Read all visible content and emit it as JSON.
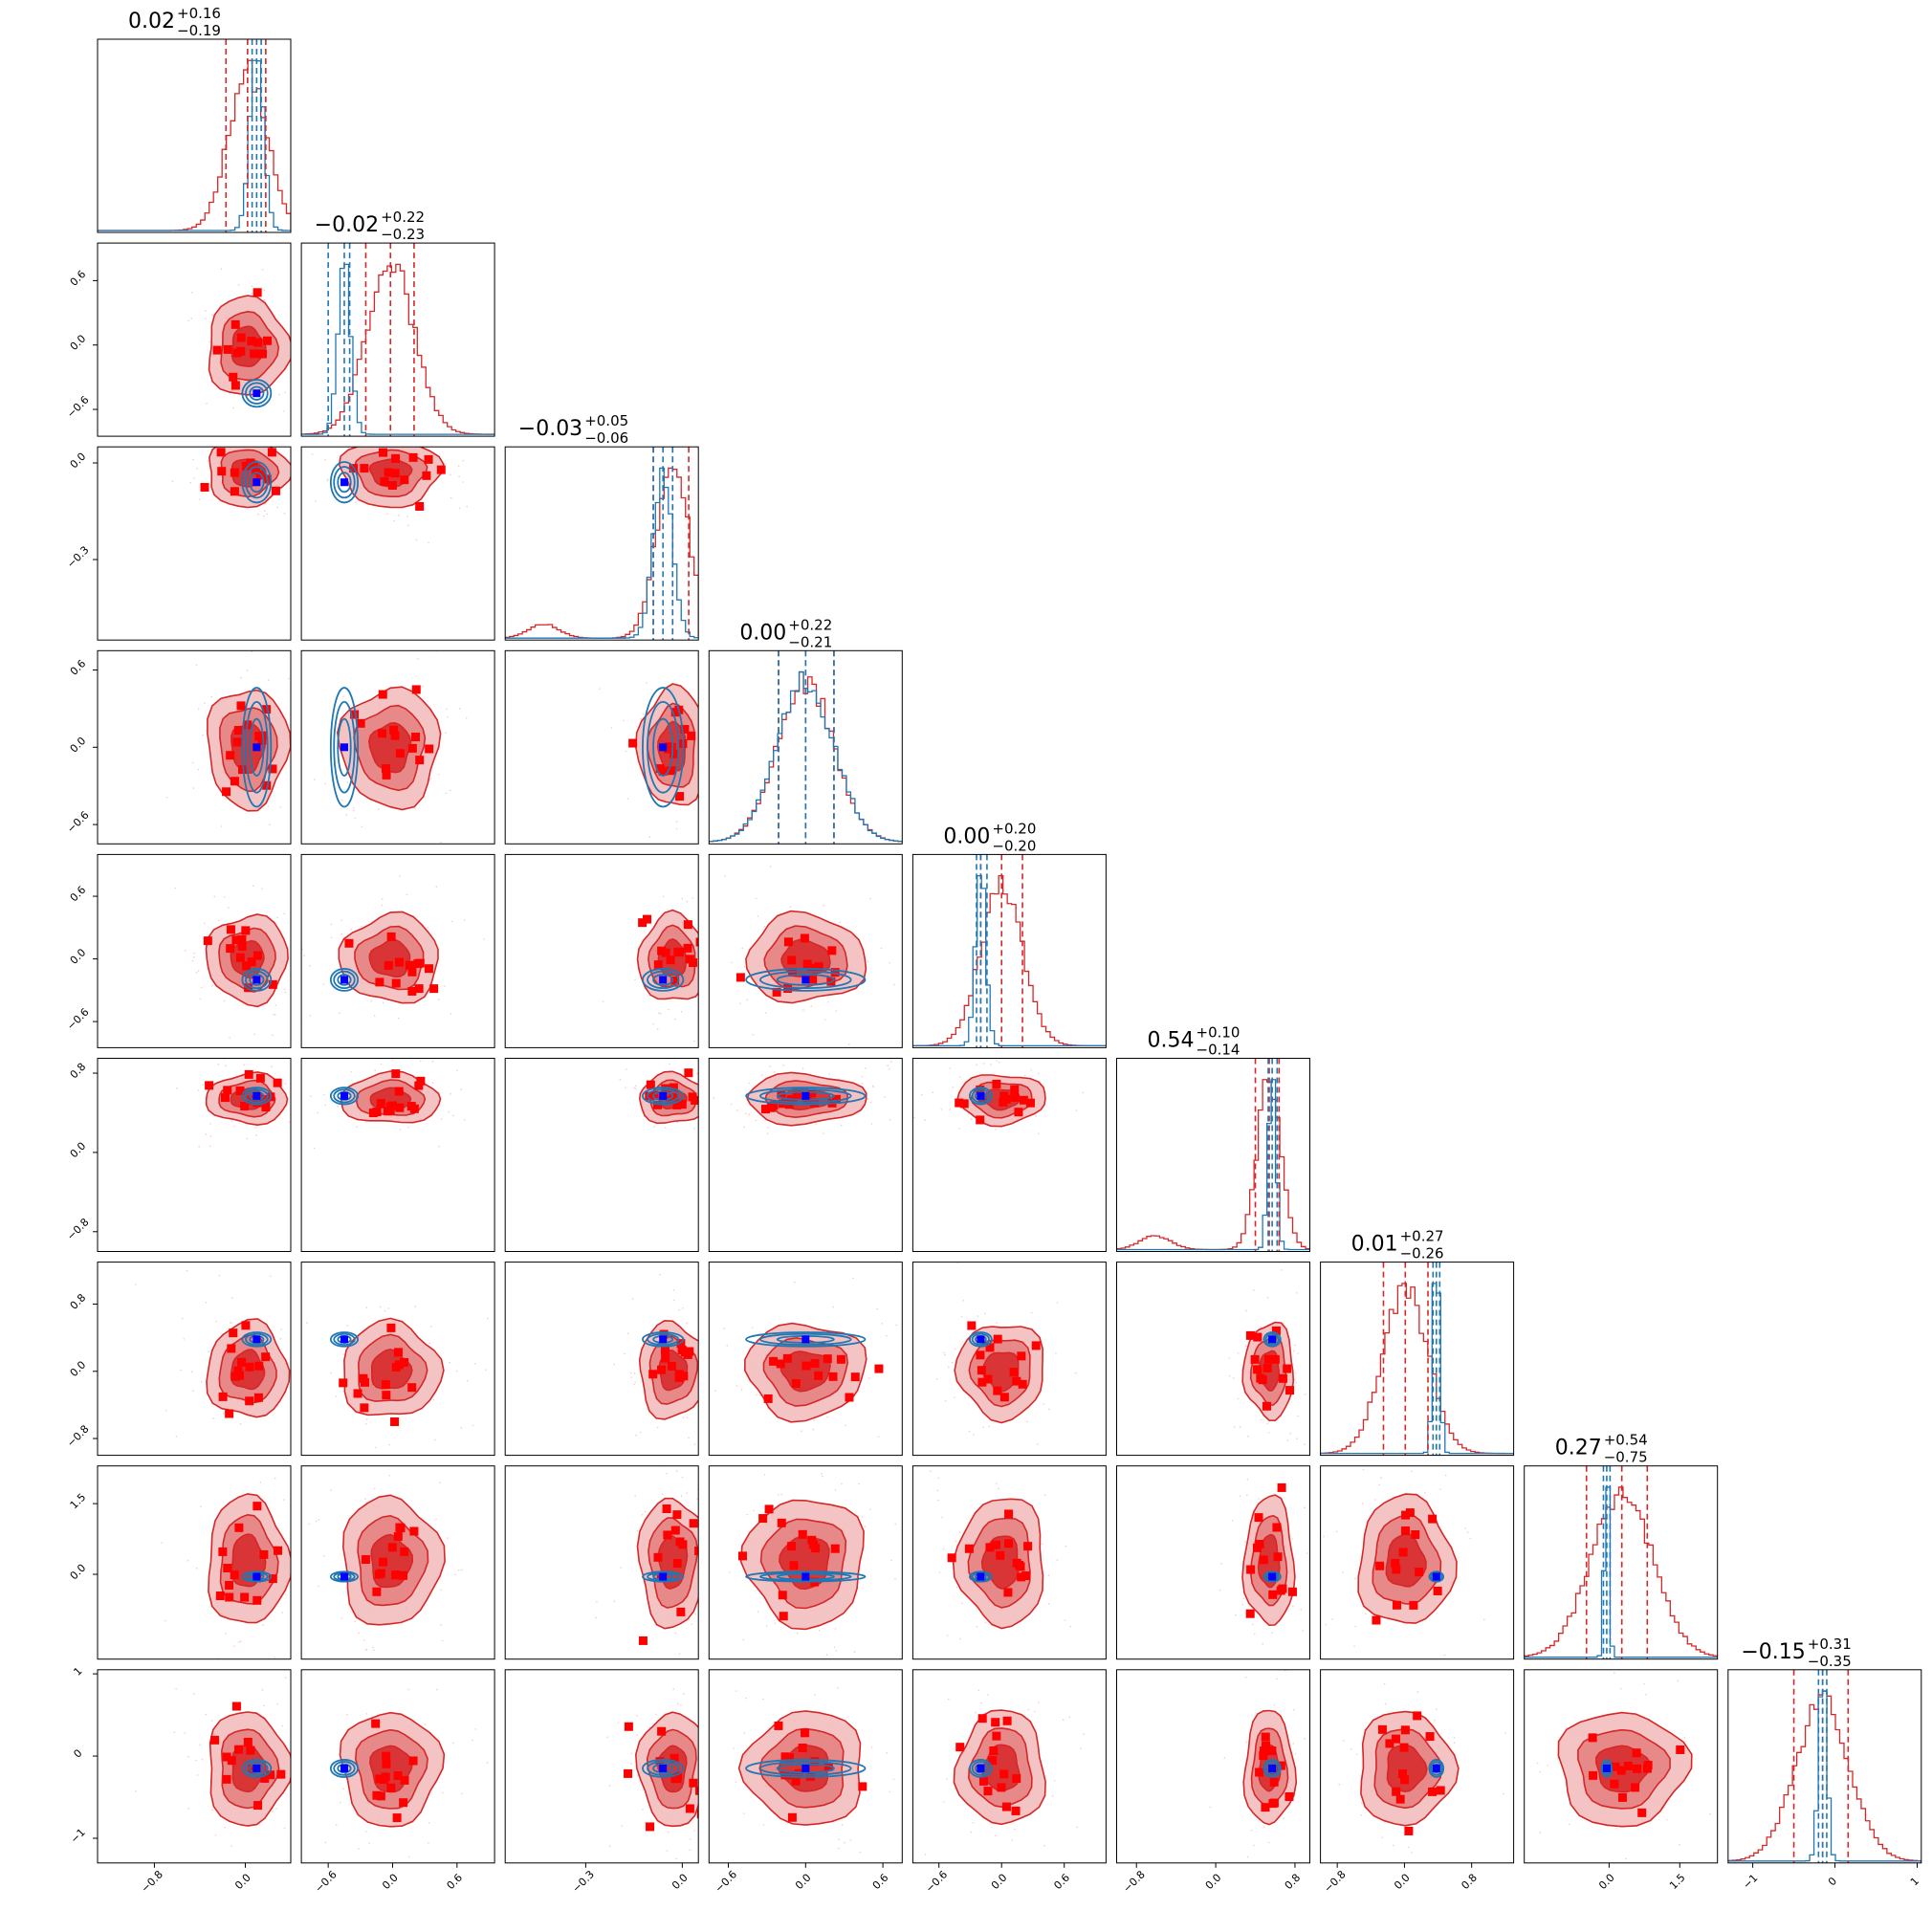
{
  "chart_data": {
    "type": "corner",
    "n_params": 9,
    "colors": {
      "red": "#d62728",
      "blue": "#1f77b4",
      "marker_red": "#ff0000",
      "marker_blue": "#0000ff"
    },
    "titles": [
      {
        "median": "0.02",
        "plus": "+0.16",
        "minus": "−0.19"
      },
      {
        "median": "−0.02",
        "plus": "+0.22",
        "minus": "−0.23"
      },
      {
        "median": "−0.03",
        "plus": "+0.05",
        "minus": "−0.06"
      },
      {
        "median": "0.00",
        "plus": "+0.22",
        "minus": "−0.21"
      },
      {
        "median": "0.00",
        "plus": "+0.20",
        "minus": "−0.20"
      },
      {
        "median": "0.54",
        "plus": "+0.10",
        "minus": "−0.14"
      },
      {
        "median": "0.01",
        "plus": "+0.27",
        "minus": "−0.26"
      },
      {
        "median": "0.27",
        "plus": "+0.54",
        "minus": "−0.75"
      },
      {
        "median": "−0.15",
        "plus": "+0.31",
        "minus": "−0.35"
      }
    ],
    "ranges": [
      [
        -1.3,
        0.4
      ],
      [
        -0.85,
        0.95
      ],
      [
        -0.55,
        0.05
      ],
      [
        -0.75,
        0.75
      ],
      [
        -0.85,
        1.0
      ],
      [
        -1.0,
        0.95
      ],
      [
        -1.0,
        1.3
      ],
      [
        -1.8,
        2.3
      ],
      [
        -1.3,
        1.05
      ]
    ],
    "ticks": [
      [
        -0.8,
        0.0
      ],
      [
        -0.6,
        0.0,
        0.6
      ],
      [
        -0.3,
        0.0
      ],
      [
        -0.6,
        0.0,
        0.6
      ],
      [
        -0.6,
        0.0,
        0.6
      ],
      [
        -0.8,
        0.0,
        0.8
      ],
      [
        -0.8,
        0.0,
        0.8
      ],
      [
        0.0,
        1.5
      ],
      [
        -1,
        0,
        1
      ]
    ],
    "tick_labels": [
      [
        "−0.8",
        "0.0"
      ],
      [
        "−0.6",
        "0.0",
        "0.6"
      ],
      [
        "−0.3",
        "0.0"
      ],
      [
        "−0.6",
        "0.0",
        "0.6"
      ],
      [
        "−0.6",
        "0.0",
        "0.6"
      ],
      [
        "−0.8",
        "0.0",
        "0.8"
      ],
      [
        "−0.8",
        "0.0",
        "0.8"
      ],
      [
        "0.0",
        "1.5"
      ],
      [
        "−1",
        "0",
        "1"
      ]
    ],
    "truth": [
      0.1,
      -0.45,
      -0.06,
      0.0,
      -0.2,
      0.57,
      0.38,
      -0.05,
      -0.15
    ],
    "red_median": [
      0.02,
      -0.02,
      -0.03,
      0.0,
      0.0,
      0.54,
      0.01,
      0.27,
      -0.15
    ],
    "red_sigma": [
      0.17,
      0.22,
      0.05,
      0.22,
      0.2,
      0.12,
      0.27,
      0.65,
      0.33
    ],
    "blue_median": [
      0.1,
      -0.45,
      -0.06,
      0.0,
      -0.2,
      0.57,
      0.38,
      -0.05,
      -0.15
    ],
    "blue_sigma": [
      0.06,
      0.06,
      0.03,
      0.22,
      0.05,
      0.04,
      0.04,
      0.05,
      0.05
    ],
    "blue_q16": [
      0.06,
      -0.6,
      -0.09,
      -0.21,
      -0.24,
      0.53,
      0.34,
      -0.12,
      -0.2
    ],
    "blue_q84": [
      0.14,
      -0.4,
      -0.03,
      0.22,
      -0.14,
      0.62,
      0.42,
      0.02,
      -0.1
    ],
    "red_q16": [
      -0.17,
      -0.25,
      -0.09,
      -0.21,
      -0.2,
      0.4,
      -0.25,
      -0.48,
      -0.5
    ],
    "red_q84": [
      0.18,
      0.2,
      0.02,
      0.22,
      0.2,
      0.64,
      0.28,
      0.81,
      0.16
    ]
  }
}
